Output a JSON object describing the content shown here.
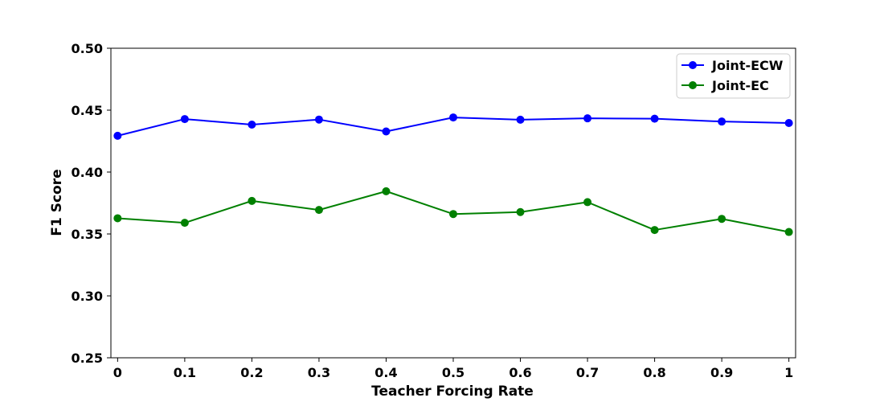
{
  "chart_data": {
    "type": "line",
    "xlabel": "Teacher Forcing Rate",
    "ylabel": "F1 Score",
    "x": [
      0,
      0.1,
      0.2,
      0.3,
      0.4,
      0.5,
      0.6,
      0.7,
      0.8,
      0.9,
      1
    ],
    "x_tick_labels": [
      "0",
      "0.1",
      "0.2",
      "0.3",
      "0.4",
      "0.5",
      "0.6",
      "0.7",
      "0.8",
      "0.9",
      "1"
    ],
    "xlim": [
      -0.01,
      1.01
    ],
    "ylim": [
      0.25,
      0.5
    ],
    "y_ticks": [
      0.25,
      0.3,
      0.35,
      0.4,
      0.45,
      0.5
    ],
    "y_tick_labels": [
      "0.25",
      "0.30",
      "0.35",
      "0.40",
      "0.45",
      "0.50"
    ],
    "grid": false,
    "legend_position": "top-right",
    "series": [
      {
        "name": "Joint-ECW",
        "color": "#0000ff",
        "marker": "circle",
        "values": [
          0.4293,
          0.4428,
          0.4383,
          0.4424,
          0.4328,
          0.4441,
          0.4423,
          0.4434,
          0.4431,
          0.4408,
          0.4396
        ]
      },
      {
        "name": "Joint-EC",
        "color": "#008000",
        "marker": "circle",
        "values": [
          0.3627,
          0.359,
          0.3767,
          0.3694,
          0.3845,
          0.3661,
          0.3677,
          0.3757,
          0.3532,
          0.3622,
          0.3516
        ]
      }
    ]
  }
}
